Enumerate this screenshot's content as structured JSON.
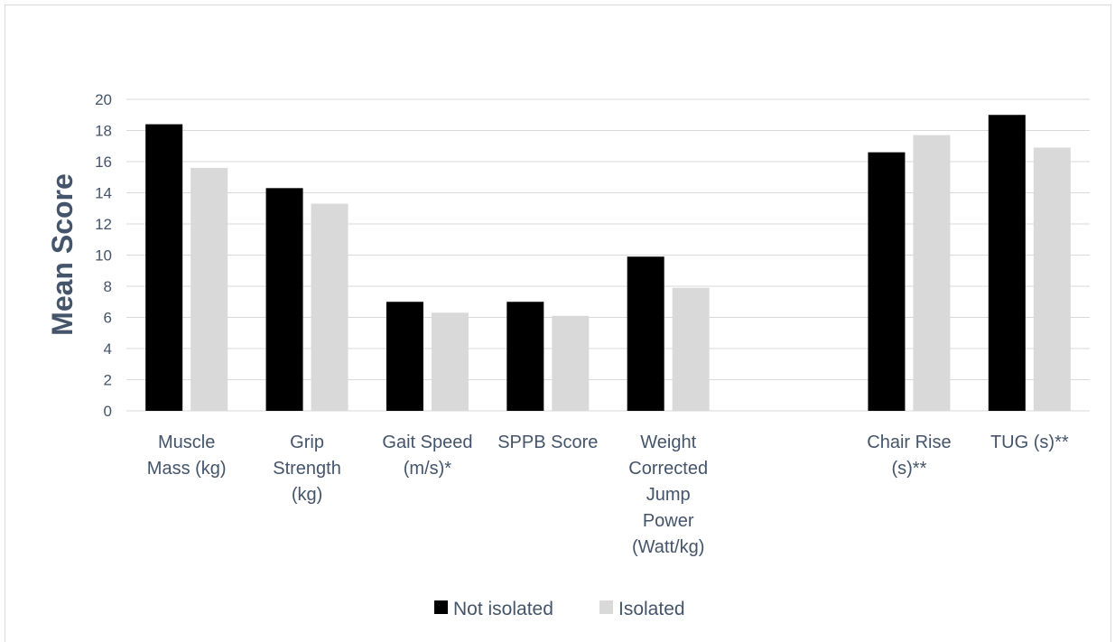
{
  "chart_data": {
    "type": "bar",
    "title": "",
    "xlabel": "",
    "ylabel": "Mean Score",
    "ylim": [
      0,
      20
    ],
    "yticks": [
      0,
      2,
      4,
      6,
      8,
      10,
      12,
      14,
      16,
      18,
      20
    ],
    "grid": true,
    "legend_position": "bottom",
    "categories": [
      [
        "Muscle",
        "Mass (kg)"
      ],
      [
        "Grip",
        "Strength",
        "(kg)"
      ],
      [
        "Gait Speed",
        "(m/s)*"
      ],
      [
        "SPPB Score"
      ],
      [
        "Weight",
        "Corrected",
        "Jump",
        "Power",
        "(Watt/kg)"
      ],
      [],
      [
        "Chair Rise",
        "(s)**"
      ],
      [
        "TUG (s)**"
      ]
    ],
    "series": [
      {
        "name": "Not isolated",
        "color": "#000000",
        "values": [
          18.4,
          14.3,
          7.0,
          7.0,
          9.9,
          null,
          16.6,
          19.0
        ]
      },
      {
        "name": "Isolated",
        "color": "#d9d9d9",
        "values": [
          15.6,
          13.3,
          6.3,
          6.1,
          7.9,
          null,
          17.7,
          16.9
        ]
      }
    ]
  }
}
